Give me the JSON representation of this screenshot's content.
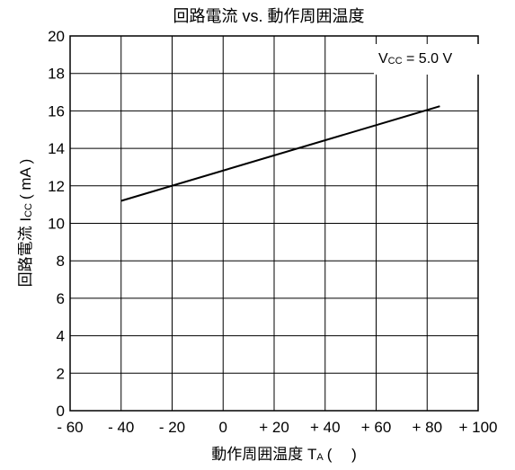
{
  "chart_data": {
    "type": "line",
    "title": "回路電流 vs. 動作周囲温度",
    "xlabel": {
      "text": "動作周囲温度 T",
      "sub": "A",
      "unit": "(　 )"
    },
    "ylabel": {
      "text": "回路電流 I",
      "sub": "CC",
      "unit": "( mA )"
    },
    "xlim": [
      -60,
      100
    ],
    "ylim": [
      0,
      20
    ],
    "x_ticks": [
      -60,
      -40,
      -20,
      0,
      20,
      40,
      60,
      80,
      100
    ],
    "x_tick_labels": [
      "- 60",
      "- 40",
      "- 20",
      "0",
      "+ 20",
      "+ 40",
      "+ 60",
      "+ 80",
      "+ 100"
    ],
    "y_ticks": [
      0,
      2,
      4,
      6,
      8,
      10,
      12,
      14,
      16,
      18,
      20
    ],
    "y_tick_labels": [
      "0",
      "2",
      "4",
      "6",
      "8",
      "10",
      "12",
      "14",
      "16",
      "18",
      "20"
    ],
    "grid": true,
    "series": [
      {
        "x": [
          -40,
          85
        ],
        "y": [
          11.2,
          16.25
        ],
        "color": "#000000"
      }
    ],
    "annotation": {
      "main": "V",
      "sub": "CC",
      "rest": " = 5.0 V",
      "position": "top-right"
    }
  }
}
